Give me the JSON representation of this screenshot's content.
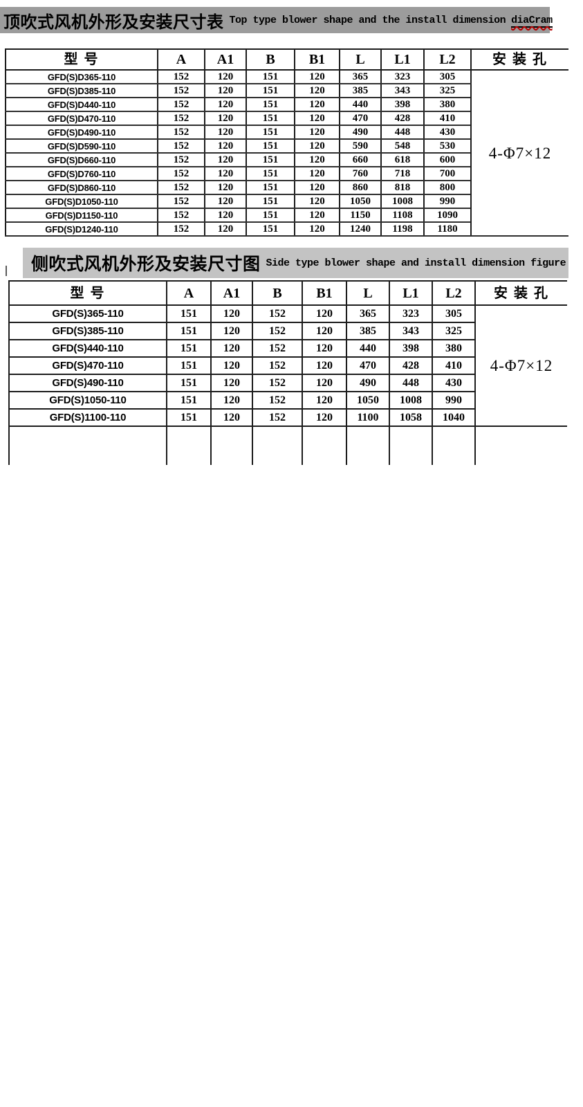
{
  "page": {
    "background": "#ffffff",
    "border_color": "#1c1c1c"
  },
  "top_section": {
    "bar_color": "#9c9c9c",
    "title_zh": "顶吹式风机外形及安装尺寸表",
    "title_en": "Top type blower shape and the install dimension",
    "misspelled_word": "diaCram"
  },
  "top_table": {
    "headers": [
      "型  号",
      "A",
      "A1",
      "B",
      "B1",
      "L",
      "L1",
      "L2",
      "安 装 孔"
    ],
    "mounting_hole": "4-Φ7×12",
    "rows": [
      [
        "GFD(S)D365-110",
        "152",
        "120",
        "151",
        "120",
        "365",
        "323",
        "305"
      ],
      [
        "GFD(S)D385-110",
        "152",
        "120",
        "151",
        "120",
        "385",
        "343",
        "325"
      ],
      [
        "GFD(S)D440-110",
        "152",
        "120",
        "151",
        "120",
        "440",
        "398",
        "380"
      ],
      [
        "GFD(S)D470-110",
        "152",
        "120",
        "151",
        "120",
        "470",
        "428",
        "410"
      ],
      [
        "GFD(S)D490-110",
        "152",
        "120",
        "151",
        "120",
        "490",
        "448",
        "430"
      ],
      [
        "GFD(S)D590-110",
        "152",
        "120",
        "151",
        "120",
        "590",
        "548",
        "530"
      ],
      [
        "GFD(S)D660-110",
        "152",
        "120",
        "151",
        "120",
        "660",
        "618",
        "600"
      ],
      [
        "GFD(S)D760-110",
        "152",
        "120",
        "151",
        "120",
        "760",
        "718",
        "700"
      ],
      [
        "GFD(S)D860-110",
        "152",
        "120",
        "151",
        "120",
        "860",
        "818",
        "800"
      ],
      [
        "GFD(S)D1050-110",
        "152",
        "120",
        "151",
        "120",
        "1050",
        "1008",
        "990"
      ],
      [
        "GFD(S)D1150-110",
        "152",
        "120",
        "151",
        "120",
        "1150",
        "1108",
        "1090"
      ],
      [
        "GFD(S)D1240-110",
        "152",
        "120",
        "151",
        "120",
        "1240",
        "1198",
        "1180"
      ]
    ]
  },
  "side_section": {
    "bar_color": "#c3c3c3",
    "title_zh": "侧吹式风机外形及安装尺寸图",
    "title_en": "Side type blower shape and install dimension figure"
  },
  "side_table": {
    "headers": [
      "型  号",
      "A",
      "A1",
      "B",
      "B1",
      "L",
      "L1",
      "L2",
      "安 装 孔"
    ],
    "mounting_hole": "4-Φ7×12",
    "rows": [
      [
        "GFD(S)365-110",
        "151",
        "120",
        "152",
        "120",
        "365",
        "323",
        "305"
      ],
      [
        "GFD(S)385-110",
        "151",
        "120",
        "152",
        "120",
        "385",
        "343",
        "325"
      ],
      [
        "GFD(S)440-110",
        "151",
        "120",
        "152",
        "120",
        "440",
        "398",
        "380"
      ],
      [
        "GFD(S)470-110",
        "151",
        "120",
        "152",
        "120",
        "470",
        "428",
        "410"
      ],
      [
        "GFD(S)490-110",
        "151",
        "120",
        "152",
        "120",
        "490",
        "448",
        "430"
      ],
      [
        "GFD(S)1050-110",
        "151",
        "120",
        "152",
        "120",
        "1050",
        "1008",
        "990"
      ],
      [
        "GFD(S)1100-110",
        "151",
        "120",
        "152",
        "120",
        "1100",
        "1058",
        "1040"
      ]
    ]
  }
}
